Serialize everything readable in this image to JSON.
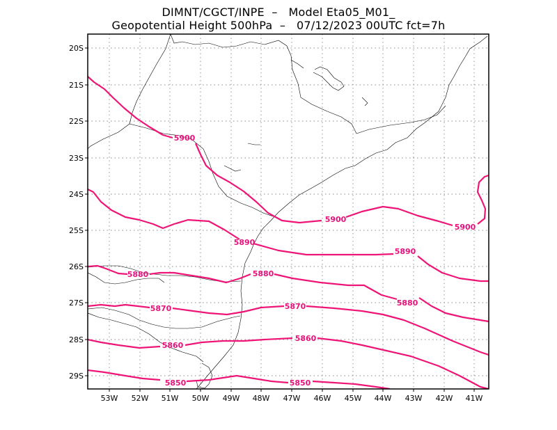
{
  "title_line1": "DIMNT/CGCT/INPE  –   Model Eta05_M01_",
  "title_line2": "Geopotential Height 500hPa  –   07/12/2023 00UTC fct=7h",
  "lon_ticks": [
    "53W",
    "52W",
    "51W",
    "50W",
    "49W",
    "48W",
    "47W",
    "46W",
    "45W",
    "44W",
    "43W",
    "42W",
    "41W"
  ],
  "lat_ticks": [
    "20S",
    "21S",
    "22S",
    "23S",
    "24S",
    "25S",
    "26S",
    "27S",
    "28S",
    "29S"
  ],
  "contour_color": "#ee1577",
  "contours": [
    {
      "value": "5900",
      "labels": [
        "5900",
        "5900",
        "5900"
      ]
    },
    {
      "value": "5890",
      "labels": [
        "5890",
        "5890"
      ]
    },
    {
      "value": "5880",
      "labels": [
        "5880",
        "5880",
        "5880"
      ]
    },
    {
      "value": "5870",
      "labels": [
        "5870",
        "5870"
      ]
    },
    {
      "value": "5860",
      "labels": [
        "5860",
        "5860"
      ]
    },
    {
      "value": "5850",
      "labels": [
        "5850",
        "5850"
      ]
    }
  ]
}
